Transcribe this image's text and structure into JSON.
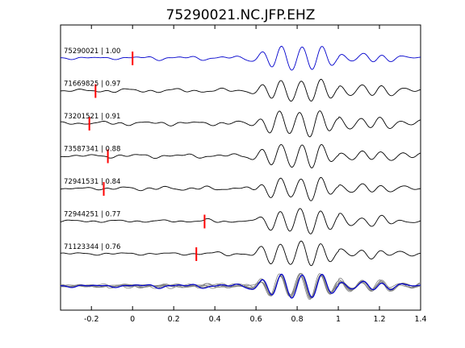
{
  "chart_data": {
    "type": "line",
    "title": "75290021.NC.JFP.EHZ",
    "xlabel": "",
    "ylabel": "",
    "xlim": [
      -0.35,
      1.4
    ],
    "xticks": [
      -0.2,
      0,
      0.2,
      0.4,
      0.6,
      0.8,
      1.0,
      1.2,
      1.4
    ],
    "xtick_labels": [
      "-0.2",
      "0",
      "0.2",
      "0.4",
      "0.6",
      "0.8",
      "1",
      "1.2",
      "1.4"
    ],
    "grid": false,
    "colors": {
      "reference": "#0000cc",
      "trace": "#000000",
      "pick": "#ff0000",
      "stack_other": "#808080"
    },
    "traces": [
      {
        "label": "75290021 | 1.00",
        "event_id": "75290021",
        "correlation": 1.0,
        "pick_time": 0.0,
        "reference": true
      },
      {
        "label": "71669825 | 0.97",
        "event_id": "71669825",
        "correlation": 0.97,
        "pick_time": -0.18,
        "reference": false
      },
      {
        "label": "73201521 | 0.91",
        "event_id": "73201521",
        "correlation": 0.91,
        "pick_time": -0.21,
        "reference": false
      },
      {
        "label": "73587341 | 0.88",
        "event_id": "73587341",
        "correlation": 0.88,
        "pick_time": -0.12,
        "reference": false
      },
      {
        "label": "72941531 | 0.84",
        "event_id": "72941531",
        "correlation": 0.84,
        "pick_time": -0.14,
        "reference": false
      },
      {
        "label": "72944251 | 0.77",
        "event_id": "72944251",
        "correlation": 0.77,
        "pick_time": 0.35,
        "reference": false
      },
      {
        "label": "71123344 | 0.76",
        "event_id": "71123344",
        "correlation": 0.76,
        "pick_time": 0.31,
        "reference": false
      }
    ],
    "stack": {
      "description_visible": false,
      "includes_all_traces": true
    }
  }
}
